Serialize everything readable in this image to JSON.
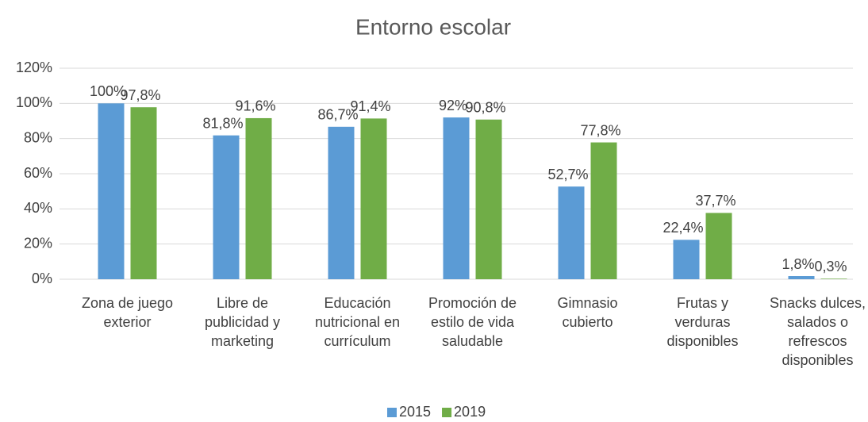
{
  "chart_data": {
    "type": "bar",
    "title": "Entorno escolar",
    "categories": [
      "Zona de juego exterior",
      "Libre de publicidad y marketing",
      "Educación nutricional en currículum",
      "Promoción de estilo de vida saludable",
      "Gimnasio cubierto",
      "Frutas y verduras disponibles",
      "Snacks dulces, salados o refrescos disponibles"
    ],
    "series": [
      {
        "name": "2015",
        "color": "#5b9bd5",
        "values": [
          100,
          81.8,
          86.7,
          92,
          52.7,
          22.4,
          1.8
        ],
        "value_labels": [
          "100%",
          "81,8%",
          "86,7%",
          "92%",
          "52,7%",
          "22,4%",
          "1,8%"
        ]
      },
      {
        "name": "2019",
        "color": "#70ad47",
        "values": [
          97.8,
          91.6,
          91.4,
          90.8,
          77.8,
          37.7,
          0.3
        ],
        "value_labels": [
          "97,8%",
          "91,6%",
          "91,4%",
          "90,8%",
          "77,8%",
          "37,7%",
          "0,3%"
        ]
      }
    ],
    "ylim": [
      0,
      120
    ],
    "yticks": [
      {
        "value": 0,
        "label": "0%"
      },
      {
        "value": 20,
        "label": "20%"
      },
      {
        "value": 40,
        "label": "40%"
      },
      {
        "value": 60,
        "label": "60%"
      },
      {
        "value": 80,
        "label": "80%"
      },
      {
        "value": 100,
        "label": "100%"
      },
      {
        "value": 120,
        "label": "120%"
      }
    ],
    "grid": true,
    "legend": "bottom"
  }
}
